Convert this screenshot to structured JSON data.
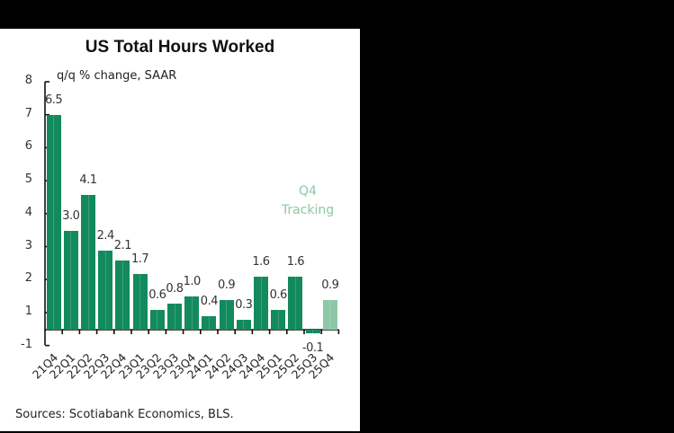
{
  "chart_data": {
    "type": "bar",
    "title": "US Total Hours Worked",
    "ylabel": "q/q % change, SAAR",
    "xlabel": "",
    "y_tick_labels": [
      "8",
      "7",
      "6",
      "5",
      "4",
      "3",
      "2",
      "1",
      "-1"
    ],
    "ylim": [
      -1,
      8
    ],
    "grid": false,
    "categories": [
      "21Q4",
      "22Q1",
      "22Q2",
      "22Q3",
      "22Q4",
      "23Q1",
      "23Q2",
      "23Q3",
      "23Q4",
      "24Q1",
      "24Q2",
      "24Q3",
      "24Q4",
      "25Q1",
      "25Q2",
      "25Q3",
      "25Q4"
    ],
    "values": [
      6.5,
      3.0,
      4.1,
      2.4,
      2.1,
      1.7,
      0.6,
      0.8,
      1.0,
      0.4,
      0.9,
      0.3,
      1.6,
      0.6,
      1.6,
      -0.1,
      0.9
    ],
    "data_labels": [
      "6.5",
      "3.0",
      "4.1",
      "2.4",
      "2.1",
      "1.7",
      "0.6",
      "0.8",
      "1.0",
      "0.4",
      "0.9",
      "0.3",
      "1.6",
      "0.6",
      "1.6",
      "-0.1",
      "0.9"
    ],
    "highlight": {
      "index": 16,
      "label": "Q4 Tracking"
    },
    "colors": {
      "actual": "#138a5e",
      "tracking": "#8cc8a7"
    },
    "annotation": [
      "Q4",
      "Tracking"
    ],
    "source": "Sources: Scotiabank Economics, BLS."
  }
}
